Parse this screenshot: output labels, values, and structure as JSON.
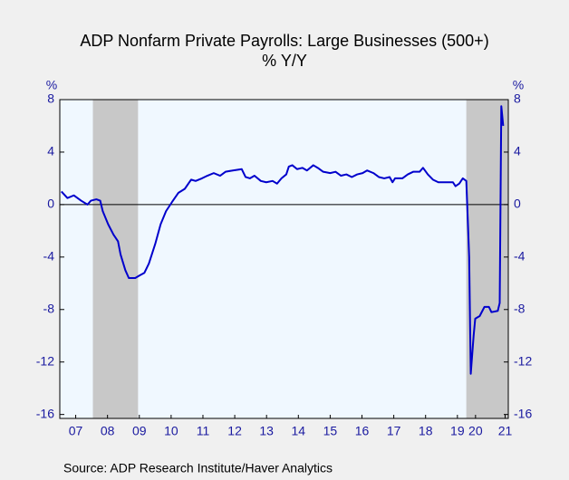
{
  "chart_data": {
    "type": "line",
    "title": "ADP Nonfarm Private Payrolls: Large Businesses (500+)",
    "subtitle": "% Y/Y",
    "y_label": "%",
    "y2_label": "%",
    "source": "Source:  ADP Research Institute/Haver Analytics",
    "xlim": [
      2007.0,
      2021.1
    ],
    "ylim": [
      -16.3,
      8
    ],
    "yticks": [
      -16,
      -12,
      -8,
      -4,
      0,
      4,
      8
    ],
    "y2lim": [
      -16.3,
      8
    ],
    "y2ticks": [
      -16,
      -12,
      -8,
      -4,
      0,
      4,
      8
    ],
    "xticks": [
      {
        "value": 2007.5,
        "label": "07"
      },
      {
        "value": 2008.5,
        "label": "08"
      },
      {
        "value": 2009.5,
        "label": "09"
      },
      {
        "value": 2010.5,
        "label": "10"
      },
      {
        "value": 2011.5,
        "label": "11"
      },
      {
        "value": 2012.5,
        "label": "12"
      },
      {
        "value": 2013.5,
        "label": "13"
      },
      {
        "value": 2014.5,
        "label": "14"
      },
      {
        "value": 2015.5,
        "label": "15"
      },
      {
        "value": 2016.5,
        "label": "16"
      },
      {
        "value": 2017.5,
        "label": "17"
      },
      {
        "value": 2018.5,
        "label": "18"
      },
      {
        "value": 2019.5,
        "label": "19"
      },
      {
        "value": 2020.07,
        "label": "20"
      },
      {
        "value": 2021.0,
        "label": "21"
      }
    ],
    "recessions": [
      [
        2008.04,
        2009.46
      ],
      [
        2019.78,
        2021.1
      ]
    ],
    "recession_color": "#c8c8c8",
    "zero_line": true,
    "series": [
      {
        "color": "#0000cc",
        "x": [
          2007.05,
          2007.24,
          2007.44,
          2007.67,
          2007.87,
          2007.98,
          2008.15,
          2008.27,
          2008.35,
          2008.52,
          2008.69,
          2008.83,
          2008.91,
          2009.06,
          2009.17,
          2009.37,
          2009.51,
          2009.66,
          2009.8,
          2010.0,
          2010.17,
          2010.34,
          2010.53,
          2010.73,
          2010.93,
          2011.13,
          2011.27,
          2011.47,
          2011.64,
          2011.84,
          2012.04,
          2012.21,
          2012.44,
          2012.72,
          2012.84,
          2012.98,
          2013.12,
          2013.32,
          2013.49,
          2013.69,
          2013.83,
          2013.97,
          2014.12,
          2014.2,
          2014.31,
          2014.46,
          2014.63,
          2014.77,
          2014.97,
          2015.11,
          2015.28,
          2015.5,
          2015.67,
          2015.84,
          2016.01,
          2016.18,
          2016.35,
          2016.52,
          2016.66,
          2016.86,
          2017.03,
          2017.2,
          2017.37,
          2017.46,
          2017.54,
          2017.77,
          2017.94,
          2018.11,
          2018.31,
          2018.42,
          2018.57,
          2018.73,
          2018.9,
          2019.13,
          2019.36,
          2019.44,
          2019.56,
          2019.67,
          2019.78,
          2019.87,
          2019.92,
          2020.01,
          2020.06,
          2020.2,
          2020.35,
          2020.49,
          2020.57,
          2020.77,
          2020.83,
          2020.88,
          2020.94
        ],
        "values": [
          1.0,
          0.5,
          0.7,
          0.3,
          0.0,
          0.3,
          0.4,
          0.3,
          -0.5,
          -1.5,
          -2.3,
          -2.8,
          -3.8,
          -5.0,
          -5.6,
          -5.6,
          -5.4,
          -5.2,
          -4.5,
          -3.0,
          -1.5,
          -0.5,
          0.2,
          0.9,
          1.2,
          1.9,
          1.8,
          2.0,
          2.2,
          2.4,
          2.2,
          2.5,
          2.6,
          2.7,
          2.1,
          2.0,
          2.2,
          1.8,
          1.7,
          1.8,
          1.6,
          2.0,
          2.3,
          2.9,
          3.0,
          2.7,
          2.8,
          2.6,
          3.0,
          2.8,
          2.5,
          2.4,
          2.5,
          2.2,
          2.3,
          2.1,
          2.3,
          2.4,
          2.6,
          2.4,
          2.1,
          2.0,
          2.1,
          1.7,
          2.0,
          2.0,
          2.3,
          2.5,
          2.5,
          2.8,
          2.3,
          1.9,
          1.7,
          1.7,
          1.7,
          1.4,
          1.6,
          2.0,
          1.8,
          -4.0,
          -12.9,
          -10.0,
          -8.7,
          -8.5,
          -7.8,
          -7.8,
          -8.2,
          -8.1,
          -7.5,
          7.5,
          6.0
        ]
      }
    ]
  }
}
